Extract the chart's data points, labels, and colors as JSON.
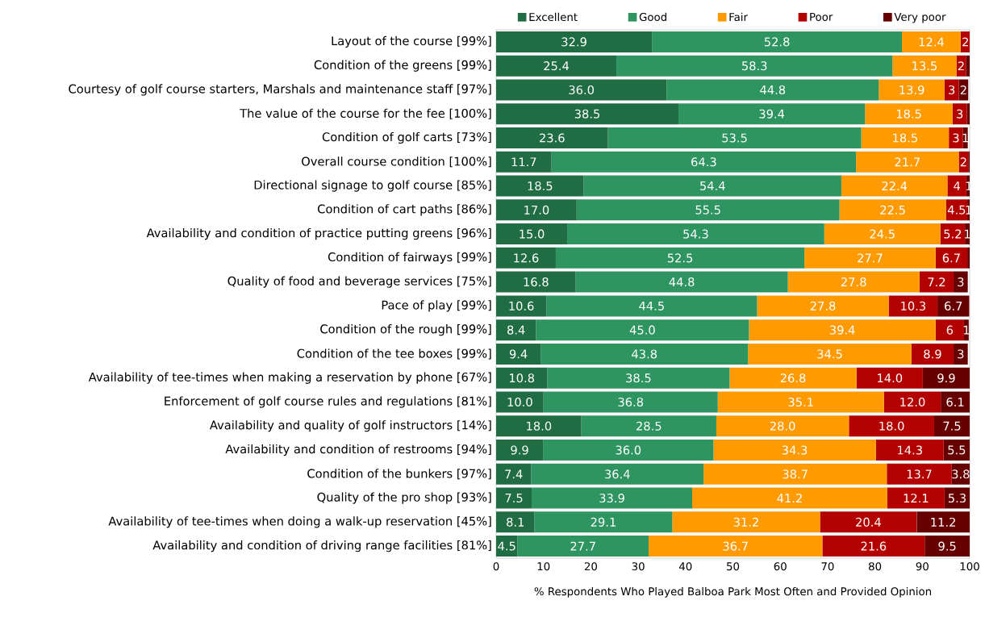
{
  "chart_data": {
    "type": "bar",
    "orientation": "horizontal",
    "stacked": true,
    "legend": "top",
    "xlabel": "% Respondents Who Played Balboa Park Most Often and Provided Opinion",
    "xlim": [
      0,
      100
    ],
    "xticks": [
      0,
      10,
      20,
      30,
      40,
      50,
      60,
      70,
      80,
      90,
      100
    ],
    "categories": [
      "Layout of the course [99%]",
      "Condition of the greens [99%]",
      "Courtesy of golf course starters, Marshals and maintenance staff [97%]",
      "The value of the course for the fee [100%]",
      "Condition of golf carts [73%]",
      "Overall course condition [100%]",
      "Directional signage to golf course [85%]",
      "Condition of cart paths [86%]",
      "Availability and condition of practice putting greens [96%]",
      "Condition of fairways [99%]",
      "Quality of food and beverage services [75%]",
      "Pace of play [99%]",
      "Condition of the rough [99%]",
      "Condition of the tee boxes [99%]",
      "Availability of tee-times when making a reservation by phone [67%]",
      "Enforcement of golf course rules and regulations [81%]",
      "Availability and quality of golf instructors [14%]",
      "Availability and condition of restrooms [94%]",
      "Condition of the bunkers [97%]",
      "Quality of the pro shop [93%]",
      "Availability of tee-times when doing a walk-up reservation [45%]",
      "Availability and condition of driving range facilities [81%]"
    ],
    "series": [
      {
        "name": "Excellent",
        "color": "#216d43",
        "values": [
          32.9,
          25.4,
          36.0,
          38.5,
          23.6,
          11.7,
          18.5,
          17.0,
          15.0,
          12.6,
          16.8,
          10.6,
          8.4,
          9.4,
          10.8,
          10.0,
          18.0,
          9.9,
          7.4,
          7.5,
          8.1,
          4.5
        ],
        "value_labels": [
          "32.9",
          "25.4",
          "36.0",
          "38.5",
          "23.6",
          "11.7",
          "18.5",
          "17.0",
          "15.0",
          "12.6",
          "16.8",
          "10.6",
          "8.4",
          "9.4",
          "10.8",
          "10.0",
          "18.0",
          "9.9",
          "7.4",
          "7.5",
          "8.1",
          "4.5"
        ]
      },
      {
        "name": "Good",
        "color": "#2e9460",
        "values": [
          52.8,
          58.3,
          44.8,
          39.4,
          53.5,
          64.3,
          54.4,
          55.5,
          54.3,
          52.5,
          44.8,
          44.5,
          45.0,
          43.8,
          38.5,
          36.8,
          28.5,
          36.0,
          36.4,
          33.9,
          29.1,
          27.7
        ],
        "value_labels": [
          "52.8",
          "58.3",
          "44.8",
          "39.4",
          "53.5",
          "64.3",
          "54.4",
          "55.5",
          "54.3",
          "52.5",
          "44.8",
          "44.5",
          "45.0",
          "43.8",
          "38.5",
          "36.8",
          "28.5",
          "36.0",
          "36.4",
          "33.9",
          "29.1",
          "27.7"
        ]
      },
      {
        "name": "Fair",
        "color": "#ff9b00",
        "values": [
          12.4,
          13.5,
          13.9,
          18.5,
          18.5,
          21.7,
          22.4,
          22.5,
          24.5,
          27.7,
          27.8,
          27.8,
          39.4,
          34.5,
          26.8,
          35.1,
          28.0,
          34.3,
          38.7,
          41.2,
          31.2,
          36.7
        ],
        "value_labels": [
          "12.4",
          "13.5",
          "13.9",
          "18.5",
          "18.5",
          "21.7",
          "22.4",
          "22.5",
          "24.5",
          "27.7",
          "27.8",
          "27.8",
          "39.4",
          "34.5",
          "26.8",
          "35.1",
          "28.0",
          "34.3",
          "38.7",
          "41.2",
          "31.2",
          "36.7"
        ]
      },
      {
        "name": "Poor",
        "color": "#b30000",
        "values": [
          2,
          2,
          3,
          3,
          3,
          2,
          4,
          4.5,
          5.2,
          6.7,
          7.2,
          10.3,
          6,
          8.9,
          14.0,
          12.0,
          18.0,
          14.3,
          13.7,
          12.1,
          20.4,
          21.6
        ],
        "value_labels": [
          "2",
          "2",
          "3",
          "3",
          "3",
          "2",
          "4",
          "4.5",
          "5.2",
          "6.7",
          "7.2",
          "10.3",
          "6",
          "8.9",
          "14.0",
          "12.0",
          "18.0",
          "14.3",
          "13.7",
          "12.1",
          "20.4",
          "21.6"
        ]
      },
      {
        "name": "Very poor",
        "color": "#660000",
        "values": [
          null,
          0.8,
          2,
          0.6,
          1,
          0.3,
          1,
          0.5,
          1,
          0.5,
          3,
          6.7,
          1,
          3,
          9.9,
          6.1,
          7.5,
          5.5,
          3.8,
          5.3,
          11.2,
          9.5
        ],
        "value_labels": [
          null,
          null,
          "2",
          null,
          "1",
          null,
          "1",
          "1",
          "1",
          null,
          "3",
          "6.7",
          "1",
          "3",
          "9.9",
          "6.1",
          "7.5",
          "5.5",
          "3.8",
          "5.3",
          "11.2",
          "9.5"
        ]
      }
    ]
  }
}
